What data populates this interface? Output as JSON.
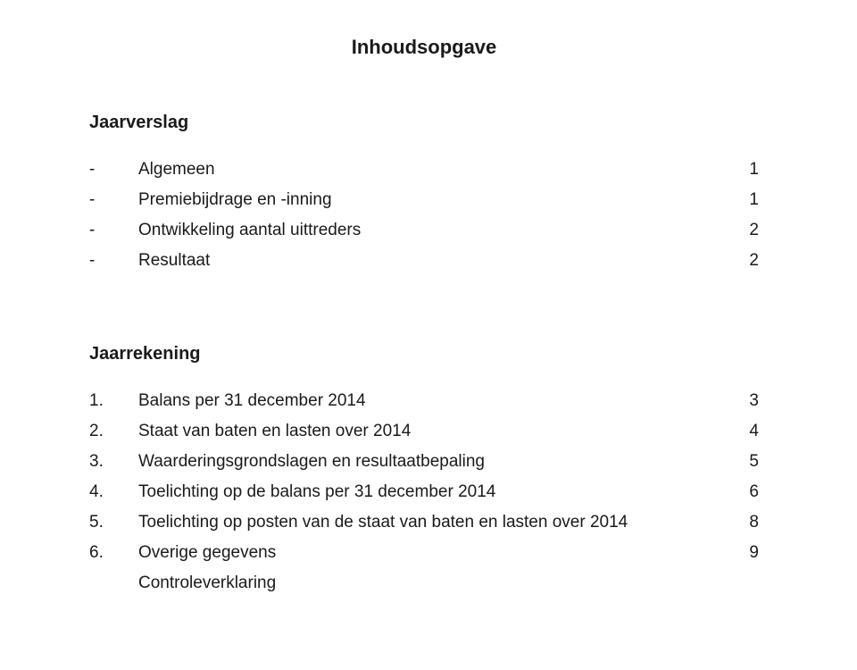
{
  "title": "Inhoudsopgave",
  "sections": {
    "jaarverslag": {
      "heading": "Jaarverslag",
      "items": [
        {
          "marker": "-",
          "label": "Algemeen",
          "page": "1"
        },
        {
          "marker": "-",
          "label": "Premiebijdrage en -inning",
          "page": "1"
        },
        {
          "marker": "-",
          "label": "Ontwikkeling aantal uittreders",
          "page": "2"
        },
        {
          "marker": "-",
          "label": "Resultaat",
          "page": "2"
        }
      ]
    },
    "jaarrekening": {
      "heading": "Jaarrekening",
      "items": [
        {
          "marker": "1.",
          "label": "Balans per 31 december 2014",
          "page": "3"
        },
        {
          "marker": "2.",
          "label": "Staat van baten en lasten over 2014",
          "page": "4"
        },
        {
          "marker": "3.",
          "label": "Waarderingsgrondslagen en resultaatbepaling",
          "page": "5"
        },
        {
          "marker": "4.",
          "label": "Toelichting op de balans per 31 december 2014",
          "page": "6"
        },
        {
          "marker": "5.",
          "label": "Toelichting op posten van de staat van baten en lasten over 2014",
          "page": "8"
        },
        {
          "marker": "6.",
          "label": "Overige gegevens",
          "page": "9"
        }
      ],
      "footer": "Controleverklaring"
    }
  }
}
